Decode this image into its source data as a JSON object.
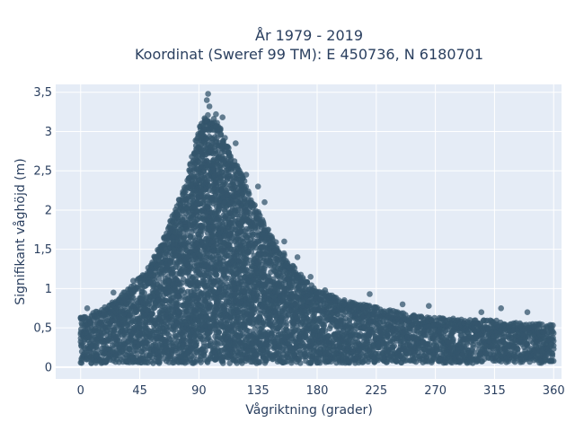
{
  "chart_data": {
    "type": "scatter",
    "title_line1": "År 1979 - 2019",
    "title_line2": "Koordinat (Sweref 99 TM): E 450736, N 6180701",
    "xlabel": "Vågriktning (grader)",
    "ylabel": "Signifikant våghöjd (m)",
    "xlim": [
      -19,
      366
    ],
    "ylim": [
      -0.15,
      3.6
    ],
    "xticks": [
      0,
      45,
      90,
      135,
      180,
      225,
      270,
      315,
      360
    ],
    "xtick_labels": [
      "0",
      "45",
      "90",
      "135",
      "180",
      "225",
      "270",
      "315",
      "360"
    ],
    "yticks": [
      0,
      0.5,
      1,
      1.5,
      2,
      2.5,
      3,
      3.5
    ],
    "ytick_labels": [
      "0",
      "0,5",
      "1",
      "1,5",
      "2",
      "2,5",
      "3",
      "3,5"
    ],
    "grid": true,
    "colors": {
      "plot_background": "#e5ecf6",
      "grid": "#ffffff",
      "marker": "#34566c",
      "text": "#2a3f5f"
    },
    "envelope": {
      "x": [
        0,
        10,
        20,
        30,
        40,
        50,
        60,
        70,
        80,
        85,
        90,
        95,
        100,
        105,
        110,
        115,
        120,
        125,
        130,
        140,
        150,
        160,
        170,
        180,
        200,
        225,
        250,
        270,
        300,
        330,
        360
      ],
      "ymax": [
        0.55,
        0.62,
        0.7,
        0.82,
        0.98,
        1.15,
        1.45,
        1.85,
        2.25,
        2.6,
        2.95,
        3.15,
        3.1,
        3.0,
        2.85,
        2.6,
        2.45,
        2.3,
        2.05,
        1.75,
        1.45,
        1.25,
        1.05,
        0.9,
        0.78,
        0.68,
        0.6,
        0.55,
        0.52,
        0.5,
        0.45
      ],
      "ymin": [
        0.05,
        0.05,
        0.05,
        0.05,
        0.05,
        0.05,
        0.05,
        0.05,
        0.05,
        0.05,
        0.05,
        0.05,
        0.05,
        0.05,
        0.05,
        0.05,
        0.05,
        0.05,
        0.05,
        0.05,
        0.05,
        0.05,
        0.05,
        0.05,
        0.05,
        0.05,
        0.05,
        0.05,
        0.05,
        0.05,
        0.05
      ]
    },
    "notable_points": [
      {
        "x": 97,
        "y": 3.48
      },
      {
        "x": 96,
        "y": 3.4
      },
      {
        "x": 98,
        "y": 3.32
      },
      {
        "x": 103,
        "y": 3.22
      },
      {
        "x": 108,
        "y": 3.18
      },
      {
        "x": 92,
        "y": 3.1
      },
      {
        "x": 118,
        "y": 2.85
      },
      {
        "x": 126,
        "y": 2.45
      },
      {
        "x": 135,
        "y": 2.3
      },
      {
        "x": 140,
        "y": 2.1
      },
      {
        "x": 155,
        "y": 1.6
      },
      {
        "x": 165,
        "y": 1.4
      },
      {
        "x": 175,
        "y": 1.15
      },
      {
        "x": 186,
        "y": 0.98
      },
      {
        "x": 220,
        "y": 0.93
      },
      {
        "x": 245,
        "y": 0.8
      },
      {
        "x": 265,
        "y": 0.78
      },
      {
        "x": 305,
        "y": 0.7
      },
      {
        "x": 320,
        "y": 0.75
      },
      {
        "x": 340,
        "y": 0.7
      },
      {
        "x": 5,
        "y": 0.75
      },
      {
        "x": 25,
        "y": 0.95
      },
      {
        "x": 40,
        "y": 1.1
      },
      {
        "x": 60,
        "y": 1.5
      },
      {
        "x": 70,
        "y": 1.65
      }
    ]
  }
}
